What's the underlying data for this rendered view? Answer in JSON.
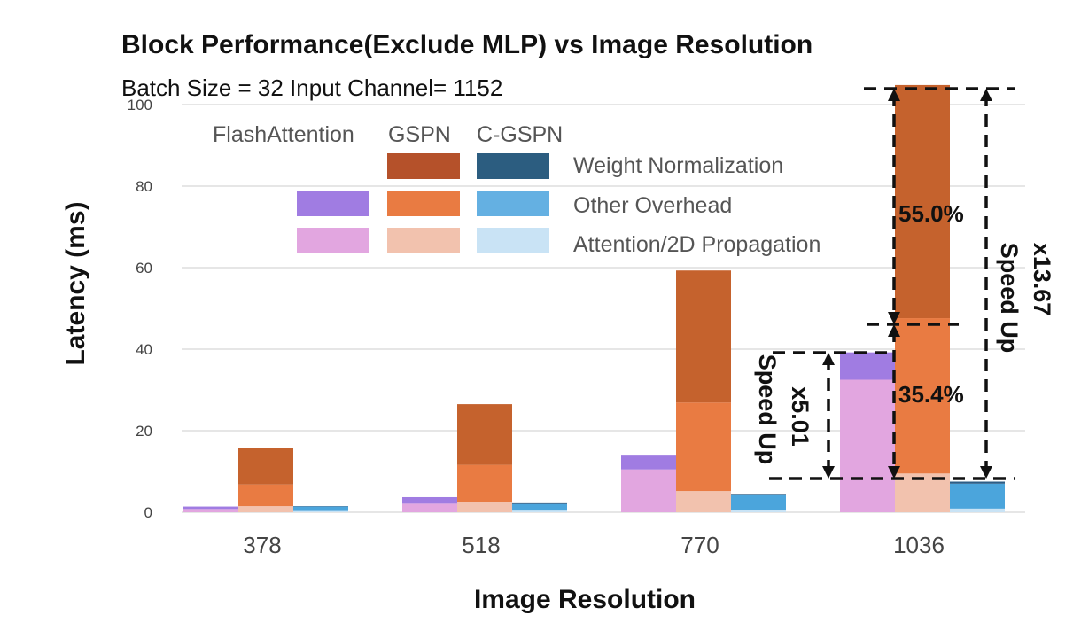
{
  "chart_data": {
    "type": "bar",
    "title": "Block Performance(Exclude MLP) vs Image Resolution",
    "subtitle": "Batch Size = 32  Input Channel= 1152",
    "xlabel": "Image Resolution",
    "ylabel": "Latency (ms)",
    "ylim": [
      0,
      105
    ],
    "yticks": [
      0,
      20,
      40,
      60,
      80,
      100
    ],
    "grid": true,
    "categories": [
      "378",
      "518",
      "770",
      "1036"
    ],
    "stack_components": [
      "Weight Normalization",
      "Other Overhead",
      "Attention/2D Propagation"
    ],
    "methods": [
      "FlashAttention",
      "GSPN",
      "C-GSPN"
    ],
    "series": [
      {
        "name": "FlashAttention",
        "stacks": [
          {
            "name": "Attention/2D Propagation",
            "values": [
              0.8,
              2.1,
              10.5,
              32.5
            ],
            "color": "#e2a6e0"
          },
          {
            "name": "Other Overhead",
            "values": [
              0.6,
              1.6,
              3.6,
              6.7
            ],
            "color": "#a07ce2"
          }
        ]
      },
      {
        "name": "GSPN",
        "stacks": [
          {
            "name": "Attention/2D Propagation",
            "values": [
              1.5,
              2.6,
              5.2,
              9.5
            ],
            "color": "#f2c2ae"
          },
          {
            "name": "Other Overhead",
            "values": [
              5.3,
              9.0,
              21.7,
              38.1
            ],
            "color": "#e97b42"
          },
          {
            "name": "Weight Normalization",
            "values": [
              8.9,
              14.9,
              32.4,
              57.2
            ],
            "color": "#c5622d"
          }
        ]
      },
      {
        "name": "C-GSPN",
        "stacks": [
          {
            "name": "Attention/2D Propagation",
            "values": [
              0.3,
              0.4,
              0.6,
              0.9
            ],
            "color": "#c9e3f5"
          },
          {
            "name": "Other Overhead",
            "values": [
              1.1,
              1.6,
              3.6,
              6.1
            ],
            "color": "#4ba5dc"
          },
          {
            "name": "Weight Normalization",
            "values": [
              0.1,
              0.2,
              0.3,
              0.5
            ],
            "color": "#2c5d86"
          }
        ]
      }
    ],
    "annotations": {
      "pct_weight": "55.0%",
      "pct_other": "35.4%",
      "speedup_small_value": "x5.01",
      "speedup_small_text": "Speed Up",
      "speedup_large_value": "x13.67",
      "speedup_large_text": "Speed Up"
    }
  },
  "legend": {
    "headers": [
      "FlashAttention",
      "GSPN",
      "C-GSPN"
    ],
    "rows": [
      "Weight Normalization",
      "Other Overhead",
      "Attention/2D Propagation"
    ],
    "colors": {
      "flash": [
        "",
        "#a07ce2",
        "#e2a6e0"
      ],
      "gspn": [
        "#b5512a",
        "#e97b42",
        "#f2c2ae"
      ],
      "cgspn": [
        "#2c5d80",
        "#64b0e2",
        "#c9e3f5"
      ]
    }
  }
}
